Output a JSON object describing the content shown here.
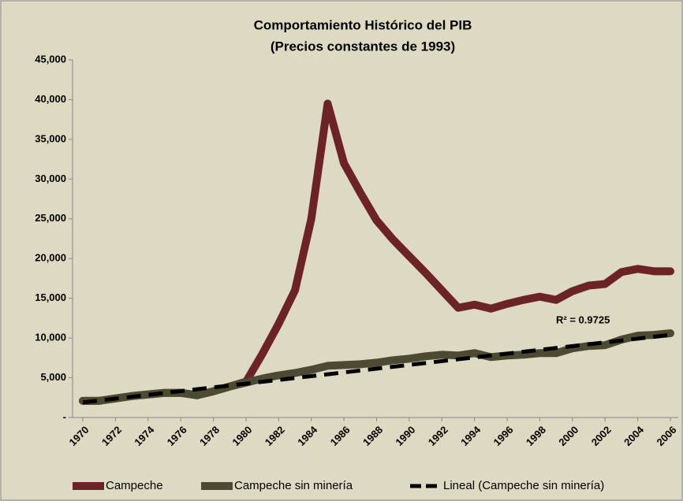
{
  "chart_data": {
    "type": "line",
    "title": "Comportamiento Histórico del PIB",
    "subtitle": "(Precios constantes de 1993)",
    "annotation": "R² = 0.9725",
    "x": [
      1970,
      1971,
      1972,
      1973,
      1974,
      1975,
      1976,
      1977,
      1978,
      1979,
      1980,
      1981,
      1982,
      1983,
      1984,
      1985,
      1986,
      1987,
      1988,
      1989,
      1990,
      1991,
      1992,
      1993,
      1994,
      1995,
      1996,
      1997,
      1998,
      1999,
      2000,
      2001,
      2002,
      2003,
      2004,
      2005,
      2006
    ],
    "xlim": [
      1970,
      2006
    ],
    "xticks": [
      1970,
      1972,
      1974,
      1976,
      1978,
      1980,
      1982,
      1984,
      1986,
      1988,
      1990,
      1992,
      1994,
      1996,
      1998,
      2000,
      2002,
      2004,
      2006
    ],
    "ylim": [
      0,
      45000
    ],
    "yticks": [
      {
        "value": 0,
        "label": "-"
      },
      {
        "value": 5000,
        "label": "5,000"
      },
      {
        "value": 10000,
        "label": "10,000"
      },
      {
        "value": 15000,
        "label": "15,000"
      },
      {
        "value": 20000,
        "label": "20,000"
      },
      {
        "value": 25000,
        "label": "25,000"
      },
      {
        "value": 30000,
        "label": "30,000"
      },
      {
        "value": 35000,
        "label": "35,000"
      },
      {
        "value": 40000,
        "label": "40,000"
      },
      {
        "value": 45000,
        "label": "45,000"
      }
    ],
    "legend": "bottom",
    "series": [
      {
        "name": "Campeche",
        "color": "#6b2326",
        "values": [
          2100,
          2100,
          2400,
          2700,
          2900,
          3100,
          3100,
          2800,
          3300,
          3900,
          4500,
          8000,
          11800,
          16000,
          25000,
          39500,
          32000,
          28300,
          24800,
          22400,
          20300,
          18200,
          16000,
          13800,
          14200,
          13700,
          14300,
          14800,
          15200,
          14800,
          15900,
          16600,
          16800,
          18300,
          18700,
          18400,
          18400
        ]
      },
      {
        "name": "Campeche sin minería",
        "color": "#4d4a33",
        "values": [
          2100,
          2100,
          2400,
          2700,
          2900,
          3100,
          3100,
          2800,
          3300,
          3900,
          4400,
          4900,
          5300,
          5600,
          6000,
          6500,
          6600,
          6700,
          6900,
          7200,
          7400,
          7700,
          7900,
          7800,
          8100,
          7600,
          7800,
          7900,
          8100,
          8100,
          8700,
          9000,
          9100,
          9800,
          10300,
          10400,
          10600
        ]
      },
      {
        "name": "Lineal (Campeche sin minería)",
        "color": "#000000",
        "dashed": true,
        "values": [
          1900,
          2136,
          2372,
          2608,
          2844,
          3080,
          3316,
          3552,
          3788,
          4024,
          4260,
          4496,
          4732,
          4968,
          5204,
          5440,
          5676,
          5912,
          6148,
          6384,
          6620,
          6856,
          7092,
          7328,
          7564,
          7800,
          8036,
          8272,
          8508,
          8744,
          8980,
          9216,
          9452,
          9688,
          9924,
          10160,
          10396
        ]
      }
    ]
  }
}
